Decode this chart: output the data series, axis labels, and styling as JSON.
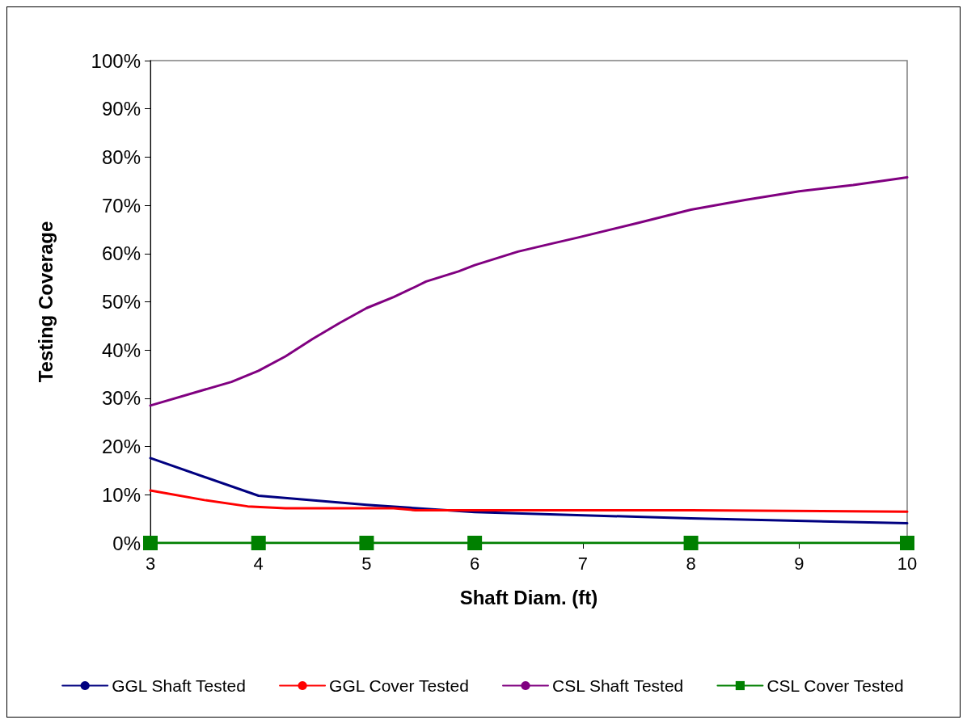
{
  "chart_data": {
    "type": "line",
    "xlabel": "Shaft Diam. (ft)",
    "ylabel": "Testing Coverage",
    "xlim": [
      3,
      10
    ],
    "xticks": [
      3,
      4,
      5,
      6,
      7,
      8,
      9,
      10
    ],
    "ylim": [
      0,
      100
    ],
    "yticks": [
      {
        "value": 0,
        "label": "0%"
      },
      {
        "value": 10,
        "label": "10%"
      },
      {
        "value": 20,
        "label": "20%"
      },
      {
        "value": 30,
        "label": "30%"
      },
      {
        "value": 40,
        "label": "40%"
      },
      {
        "value": 50,
        "label": "50%"
      },
      {
        "value": 60,
        "label": "60%"
      },
      {
        "value": 70,
        "label": "70%"
      },
      {
        "value": 80,
        "label": "80%"
      },
      {
        "value": 90,
        "label": "90%"
      },
      {
        "value": 100,
        "label": "100%"
      }
    ],
    "grid": false,
    "legend": "bottom",
    "line_style": "solid",
    "series": [
      {
        "name": "GGL Shaft Tested",
        "color": "#000080",
        "marker": "none",
        "x": [
          3,
          4,
          5,
          6,
          8,
          10
        ],
        "values": [
          17.6,
          9.8,
          7.9,
          6.4,
          5.1,
          4.1
        ]
      },
      {
        "name": "GGL Cover Tested",
        "color": "#ff0000",
        "marker": "none",
        "x": [
          3,
          3.5,
          3.9,
          4.25,
          5.25,
          5.45,
          8,
          10
        ],
        "values": [
          10.9,
          8.9,
          7.6,
          7.2,
          7.2,
          6.8,
          6.8,
          6.5
        ]
      },
      {
        "name": "CSL Shaft Tested",
        "color": "#800080",
        "marker": "none",
        "x": [
          3,
          3.75,
          4,
          4.25,
          4.5,
          4.75,
          5,
          5.25,
          5.45,
          5.55,
          5.85,
          6,
          6.4,
          6.7,
          6.95,
          7.5,
          8,
          8.5,
          9,
          9.5,
          10
        ],
        "values": [
          28.5,
          33.4,
          35.7,
          38.7,
          42.3,
          45.6,
          48.7,
          51.0,
          53.1,
          54.2,
          56.3,
          57.6,
          60.4,
          62.0,
          63.3,
          66.3,
          69.1,
          71.1,
          72.9,
          74.2,
          75.8
        ]
      },
      {
        "name": "CSL Cover Tested",
        "color": "#008000",
        "marker": "square",
        "x": [
          3,
          4,
          5,
          6,
          8,
          10
        ],
        "values": [
          0,
          0,
          0,
          0,
          0,
          0
        ]
      }
    ]
  }
}
